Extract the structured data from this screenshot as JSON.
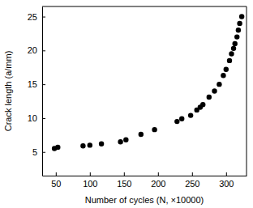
{
  "chart_data": {
    "type": "scatter",
    "x_label": "Number of cycles (N, ×10000)",
    "y_label": "Crack length (a/mm)",
    "x": [
      48,
      53,
      90,
      100,
      117,
      145,
      153,
      175,
      195,
      228,
      235,
      248,
      257,
      262,
      266,
      275,
      283,
      290,
      296,
      300,
      305,
      308,
      311,
      313,
      316,
      318,
      320,
      323
    ],
    "values": [
      5.5,
      5.7,
      5.9,
      6.0,
      6.2,
      6.5,
      6.8,
      7.6,
      8.3,
      9.5,
      9.9,
      10.4,
      11.2,
      11.6,
      12.0,
      13.1,
      14.0,
      15.0,
      16.3,
      17.2,
      18.5,
      19.5,
      20.3,
      21.0,
      22.0,
      23.0,
      24.0,
      25.0
    ],
    "color": "#000000",
    "marker": "circle",
    "xlim": [
      30,
      330
    ],
    "xticks": [
      50,
      100,
      150,
      200,
      250,
      300
    ],
    "ylim": [
      1.5,
      26.5
    ],
    "yticks": [
      5,
      10,
      15,
      20,
      25
    ],
    "grid": false
  }
}
